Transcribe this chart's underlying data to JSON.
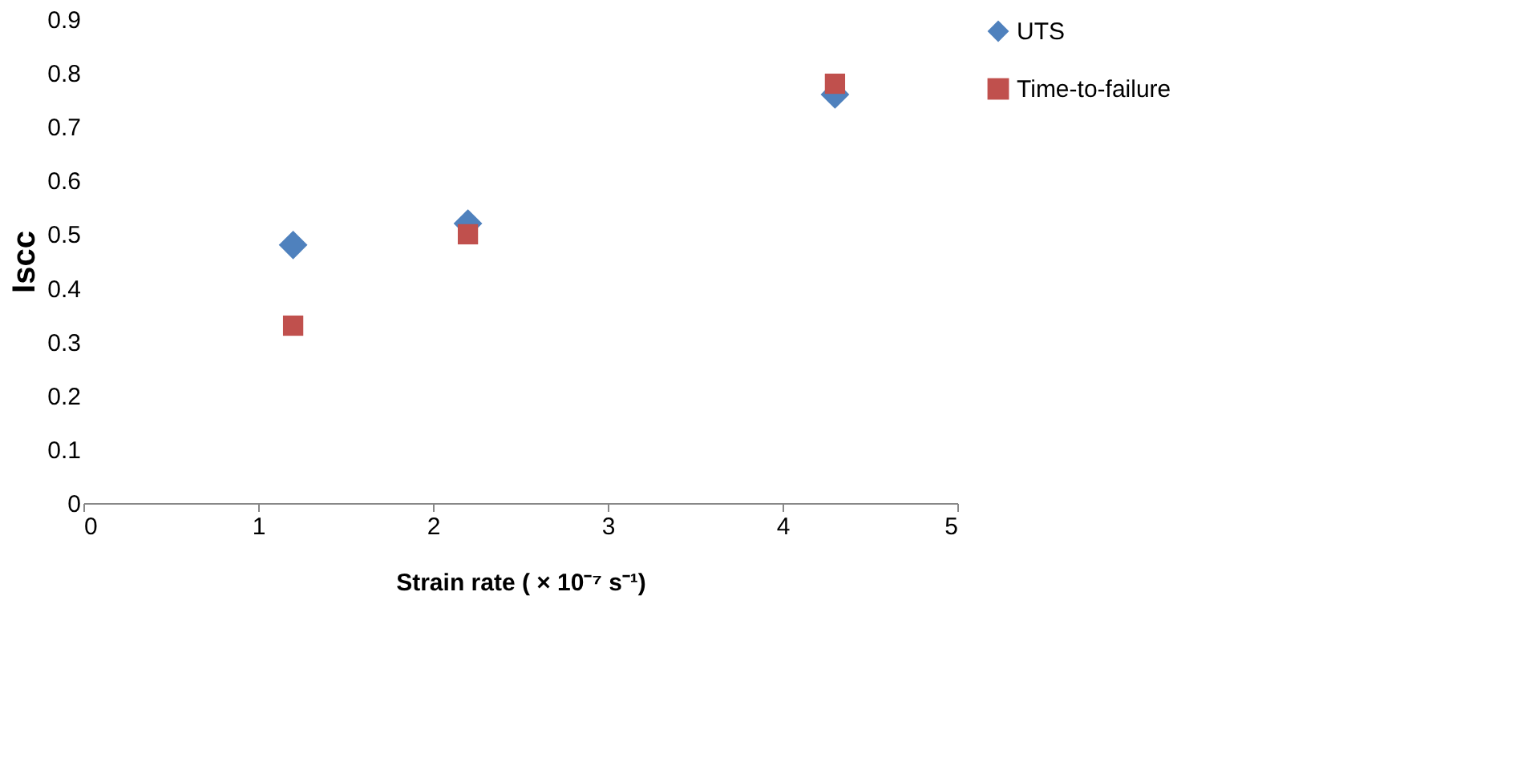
{
  "chart_data": {
    "type": "scatter",
    "xlabel": "Strain rate ( × 10⁻⁷ s⁻¹)",
    "ylabel": "Iscc",
    "x": [
      1.2,
      2.2,
      4.3
    ],
    "series": [
      {
        "name": "UTS",
        "color": "#4f81bd",
        "marker": "diamond",
        "values": [
          0.48,
          0.52,
          0.76
        ]
      },
      {
        "name": "Time-to-failure",
        "color": "#c0504d",
        "marker": "square",
        "values": [
          0.33,
          0.5,
          0.78
        ]
      }
    ],
    "xlim": [
      0,
      5
    ],
    "xticks": [
      0,
      1,
      2,
      3,
      4,
      5
    ],
    "ylim": [
      0,
      0.9
    ],
    "yticks": [
      0,
      0.1,
      0.2,
      0.3,
      0.4,
      0.5,
      0.6,
      0.7,
      0.8,
      0.9
    ],
    "grid": false,
    "legend": "right"
  }
}
